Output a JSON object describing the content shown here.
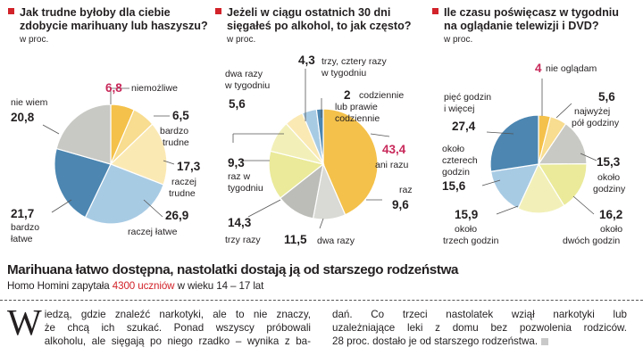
{
  "chart_data": [
    {
      "type": "pie",
      "title": "Jak trudne byłoby dla ciebie zdobycie marihuany lub haszyszu?",
      "unit": "w proc.",
      "slices": [
        {
          "value": "6,8",
          "v": 6.8,
          "label": "niemożliwe",
          "color": "#f4c14a",
          "highlight": true
        },
        {
          "value": "6,5",
          "v": 6.5,
          "label": "bardzo trudne",
          "color": "#f8dc8f"
        },
        {
          "value": "17,3",
          "v": 17.3,
          "label": "raczej trudne",
          "color": "#fbe9b4"
        },
        {
          "value": "26,9",
          "v": 26.9,
          "label": "raczej łatwe",
          "color": "#a8cbe4"
        },
        {
          "value": "21,7",
          "v": 21.7,
          "label": "bardzo łatwe",
          "color": "#4c86b1"
        },
        {
          "value": "20,8",
          "v": 20.8,
          "label": "nie wiem",
          "color": "#c8c8c4"
        }
      ]
    },
    {
      "type": "pie",
      "title": "Jeżeli w ciągu ostatnich 30 dni sięgałeś po alkohol, to jak często?",
      "unit": "w proc.",
      "slices": [
        {
          "value": "43,4",
          "v": 43.4,
          "label": "ani razu",
          "color": "#f4c14a",
          "highlight": true
        },
        {
          "value": "9,6",
          "v": 9.6,
          "label": "raz",
          "color": "#d9d9d5"
        },
        {
          "value": "11,5",
          "v": 11.5,
          "label": "dwa razy",
          "color": "#bcbcb8"
        },
        {
          "value": "14,3",
          "v": 14.3,
          "label": "trzy razy",
          "color": "#eaea9a"
        },
        {
          "value": "9,3",
          "v": 9.3,
          "label": "raz w tygodniu",
          "color": "#f2f0b8"
        },
        {
          "value": "5,6",
          "v": 5.6,
          "label": "dwa razy w tygodniu",
          "color": "#fbe9b4"
        },
        {
          "value": "4,3",
          "v": 4.3,
          "label": "trzy, cztery razy w tygodniu",
          "color": "#a8cbe4"
        },
        {
          "value": "2",
          "v": 2,
          "label": "codziennie lub prawie codziennie",
          "color": "#4c86b1"
        }
      ]
    },
    {
      "type": "pie",
      "title": "Ile czasu poświęcasz w tygodniu na oglądanie telewizji i DVD?",
      "unit": "w proc.",
      "slices": [
        {
          "value": "4",
          "v": 4,
          "label": "nie oglądam",
          "color": "#f4c14a",
          "highlight": true
        },
        {
          "value": "5,6",
          "v": 5.6,
          "label": "najwyżej pół godziny",
          "color": "#f8dc8f"
        },
        {
          "value": "15,3",
          "v": 15.3,
          "label": "około godziny",
          "color": "#c8c8c4"
        },
        {
          "value": "16,2",
          "v": 16.2,
          "label": "około dwóch godzin",
          "color": "#eaea9a"
        },
        {
          "value": "15,9",
          "v": 15.9,
          "label": "około trzech godzin",
          "color": "#f2f0b8"
        },
        {
          "value": "15,6",
          "v": 15.6,
          "label": "około czterech godzin",
          "color": "#a8cbe4"
        },
        {
          "value": "27,4",
          "v": 27.4,
          "label": "pięć godzin i więcej",
          "color": "#4c86b1"
        }
      ]
    }
  ],
  "article": {
    "headline": "Marihuana łatwo dostępna, nastolatki dostają ją od starszego rodzeństwa",
    "sub_pre": "Homo Homini zapytała ",
    "sub_highlight": "4300 uczniów",
    "sub_post": " w wieku 14 – 17 lat",
    "dropcap": "W",
    "col1_line1": "iedzą, gdzie znaleźć narkotyki, ale to nie znaczy,",
    "col1_line2": "że chcą ich szukać. Ponad wszyscy próbowali",
    "col1_line3": "alkoholu, ale sięgają po niego rzadko – wynika z ba-",
    "col2_line1": "dań. Co trzeci nastolatek wziął narkotyki lub",
    "col2_line2": "uzależniające leki z domu bez pozwolenia rodziców.",
    "col2_line3": "28 proc. dostało je od starszego rodzeństwa."
  }
}
